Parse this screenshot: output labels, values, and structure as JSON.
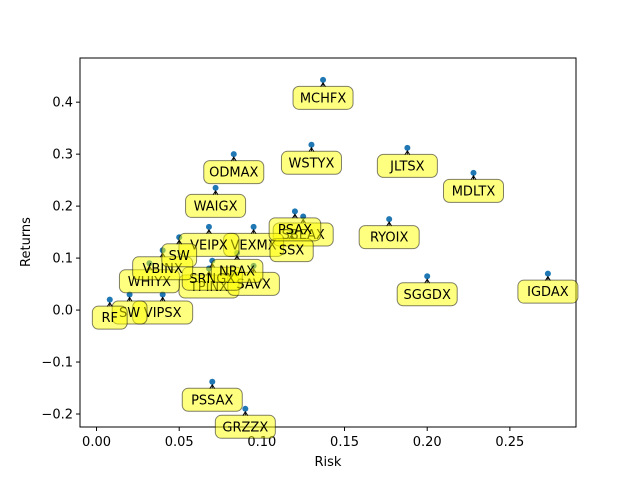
{
  "chart_data": {
    "type": "scatter",
    "xlabel": "Risk",
    "ylabel": "Returns",
    "xlim": [
      -0.01,
      0.29
    ],
    "ylim": [
      -0.225,
      0.485
    ],
    "x_ticks": [
      "0.00",
      "0.05",
      "0.10",
      "0.15",
      "0.20",
      "0.25"
    ],
    "y_ticks": [
      "−0.2",
      "−0.1",
      "0.0",
      "0.1",
      "0.2",
      "0.3",
      "0.4"
    ],
    "x_tick_values": [
      0.0,
      0.05,
      0.1,
      0.15,
      0.2,
      0.25
    ],
    "y_tick_values": [
      -0.2,
      -0.1,
      0.0,
      0.1,
      0.2,
      0.3,
      0.4
    ],
    "point_color": "#1f77b4",
    "annotation_color": "#ffff00",
    "points": [
      {
        "label": "MCHFX",
        "x": 0.137,
        "y": 0.443
      },
      {
        "label": "WSTYX",
        "x": 0.13,
        "y": 0.318
      },
      {
        "label": "JLTSX",
        "x": 0.188,
        "y": 0.312
      },
      {
        "label": "MDLTX",
        "x": 0.228,
        "y": 0.264
      },
      {
        "label": "RYOIX",
        "x": 0.177,
        "y": 0.175
      },
      {
        "label": "SGGDX",
        "x": 0.2,
        "y": 0.065
      },
      {
        "label": "IGDAX",
        "x": 0.273,
        "y": 0.07
      },
      {
        "label": "PSSAX",
        "x": 0.07,
        "y": -0.138
      },
      {
        "label": "GRZZX",
        "x": 0.09,
        "y": -0.19
      },
      {
        "label": "ODMAX",
        "x": 0.083,
        "y": 0.3
      },
      {
        "label": "WAIGX",
        "x": 0.072,
        "y": 0.235
      },
      {
        "label": "SBEAX",
        "x": 0.125,
        "y": 0.18
      },
      {
        "label": "VEXMX",
        "x": 0.095,
        "y": 0.16
      },
      {
        "label": "VEIPX",
        "x": 0.068,
        "y": 0.16
      },
      {
        "label": "SSX",
        "x": 0.118,
        "y": 0.15
      },
      {
        "label": "TPINX",
        "x": 0.068,
        "y": 0.08
      },
      {
        "label": "SAVX",
        "x": 0.095,
        "y": 0.085
      },
      {
        "label": "WHIYX",
        "x": 0.032,
        "y": 0.09
      },
      {
        "label": "VIPSX",
        "x": 0.04,
        "y": 0.03
      },
      {
        "label": "SW",
        "x": 0.02,
        "y": 0.03
      },
      {
        "label": "RF",
        "x": 0.008,
        "y": 0.02
      },
      {
        "label": "SRNGX",
        "x": 0.07,
        "y": 0.095
      },
      {
        "label": "NRAX",
        "x": 0.085,
        "y": 0.11
      },
      {
        "label": "PSAX",
        "x": 0.12,
        "y": 0.19
      },
      {
        "label": "VBINX",
        "x": 0.04,
        "y": 0.115
      },
      {
        "label": "SW",
        "x": 0.05,
        "y": 0.14
      }
    ]
  }
}
